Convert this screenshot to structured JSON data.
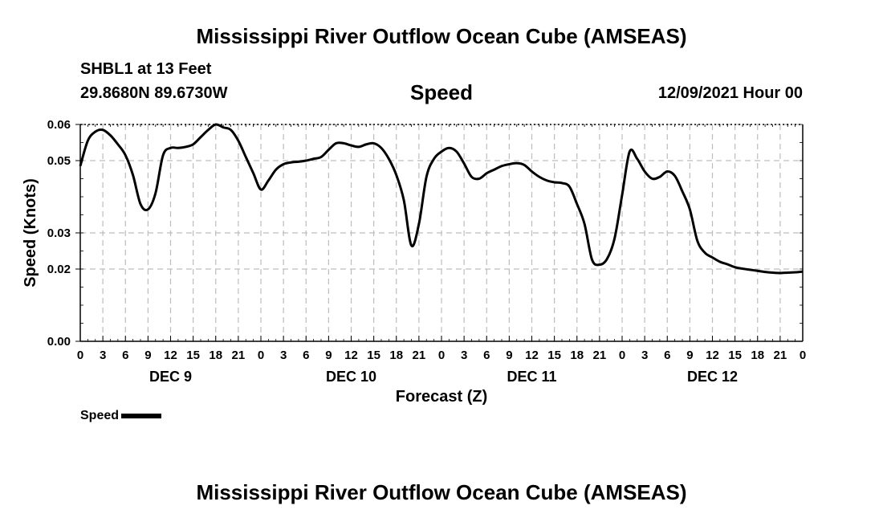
{
  "title": "Mississippi River Outflow Ocean Cube (AMSEAS)",
  "header": {
    "station": "SHBL1 at 13 Feet",
    "coords": "29.8680N  89.6730W",
    "subtitle": "Speed",
    "datetime": "12/09/2021 Hour 00"
  },
  "legend": {
    "label": "Speed"
  },
  "colors": {
    "line": "#000000",
    "grid": "#bdbdbd",
    "background": "#ffffff"
  },
  "chart_data": {
    "type": "line",
    "title": "Speed",
    "xlabel": "Forecast (Z)",
    "ylabel": "Speed (Knots)",
    "ylim": [
      0,
      0.06
    ],
    "xlim": [
      0,
      96
    ],
    "yticks": [
      0,
      0.02,
      0.03,
      0.05,
      0.06
    ],
    "ytick_labels": [
      "0.00",
      "0.02",
      "0.03",
      "0.05",
      "0.06"
    ],
    "xtick_labels": [
      "0",
      "3",
      "6",
      "9",
      "12",
      "15",
      "18",
      "21",
      "0",
      "3",
      "6",
      "9",
      "12",
      "15",
      "18",
      "21",
      "0",
      "3",
      "6",
      "9",
      "12",
      "15",
      "18",
      "21",
      "0",
      "3",
      "6",
      "9",
      "12",
      "15",
      "18",
      "21",
      "0"
    ],
    "day_labels": [
      {
        "hour": 12,
        "label": "DEC 9"
      },
      {
        "hour": 36,
        "label": "DEC 10"
      },
      {
        "hour": 60,
        "label": "DEC 11"
      },
      {
        "hour": 84,
        "label": "DEC 12"
      }
    ],
    "grid": true,
    "series": [
      {
        "name": "Speed",
        "x": [
          0,
          1,
          2,
          3,
          4,
          5,
          6,
          7,
          8,
          9,
          10,
          11,
          12,
          13,
          14,
          15,
          16,
          17,
          18,
          19,
          20,
          21,
          22,
          23,
          24,
          25,
          26,
          27,
          28,
          29,
          30,
          31,
          32,
          33,
          34,
          35,
          36,
          37,
          38,
          39,
          40,
          41,
          42,
          43,
          44,
          45,
          46,
          47,
          48,
          49,
          50,
          51,
          52,
          53,
          54,
          55,
          56,
          57,
          58,
          59,
          60,
          61,
          62,
          63,
          64,
          65,
          66,
          67,
          68,
          69,
          70,
          71,
          72,
          73,
          74,
          75,
          76,
          77,
          78,
          79,
          80,
          81,
          82,
          83,
          84,
          85,
          86,
          87,
          88,
          89,
          90,
          91,
          92,
          93,
          94,
          95,
          96
        ],
        "values": [
          0.0485,
          0.0555,
          0.058,
          0.0585,
          0.057,
          0.0545,
          0.0515,
          0.046,
          0.038,
          0.0365,
          0.041,
          0.0515,
          0.0535,
          0.0535,
          0.0538,
          0.0545,
          0.0565,
          0.0585,
          0.06,
          0.0592,
          0.0585,
          0.0555,
          0.051,
          0.0465,
          0.042,
          0.0445,
          0.0475,
          0.049,
          0.0495,
          0.0497,
          0.05,
          0.0505,
          0.051,
          0.053,
          0.0548,
          0.0548,
          0.0542,
          0.0538,
          0.0545,
          0.0548,
          0.0535,
          0.0505,
          0.046,
          0.039,
          0.0265,
          0.0325,
          0.0455,
          0.0505,
          0.0525,
          0.0535,
          0.0525,
          0.0492,
          0.0455,
          0.045,
          0.0465,
          0.0475,
          0.0485,
          0.049,
          0.0493,
          0.0488,
          0.047,
          0.0455,
          0.0445,
          0.044,
          0.0438,
          0.0428,
          0.038,
          0.0325,
          0.0226,
          0.0212,
          0.0228,
          0.0285,
          0.0405,
          0.0525,
          0.0505,
          0.047,
          0.045,
          0.0455,
          0.047,
          0.0458,
          0.0415,
          0.0365,
          0.0278,
          0.0245,
          0.0232,
          0.022,
          0.0213,
          0.0205,
          0.0201,
          0.0198,
          0.0195,
          0.0192,
          0.019,
          0.0189,
          0.019,
          0.0191,
          0.0193
        ]
      }
    ]
  }
}
